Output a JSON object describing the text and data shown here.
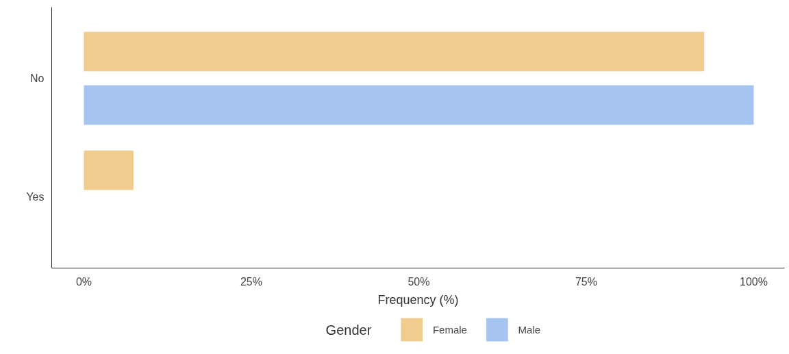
{
  "chart_data": {
    "type": "bar",
    "orientation": "horizontal",
    "categories": [
      "No",
      "Yes"
    ],
    "series": [
      {
        "name": "Female",
        "color": "#f0cd8f",
        "values": [
          92.6,
          7.4
        ]
      },
      {
        "name": "Male",
        "color": "#a6c4f0",
        "values": [
          100,
          null
        ]
      }
    ],
    "xlabel": "Frequency (%)",
    "legend_title": "Gender",
    "legend": "bottom",
    "xlim": [
      -4.8,
      104.6
    ],
    "xticks": [
      {
        "value": 0,
        "label": "0%"
      },
      {
        "value": 25,
        "label": "25%"
      },
      {
        "value": 50,
        "label": "50%"
      },
      {
        "value": 75,
        "label": "75%"
      },
      {
        "value": 100,
        "label": "100%"
      }
    ],
    "grid": false
  }
}
